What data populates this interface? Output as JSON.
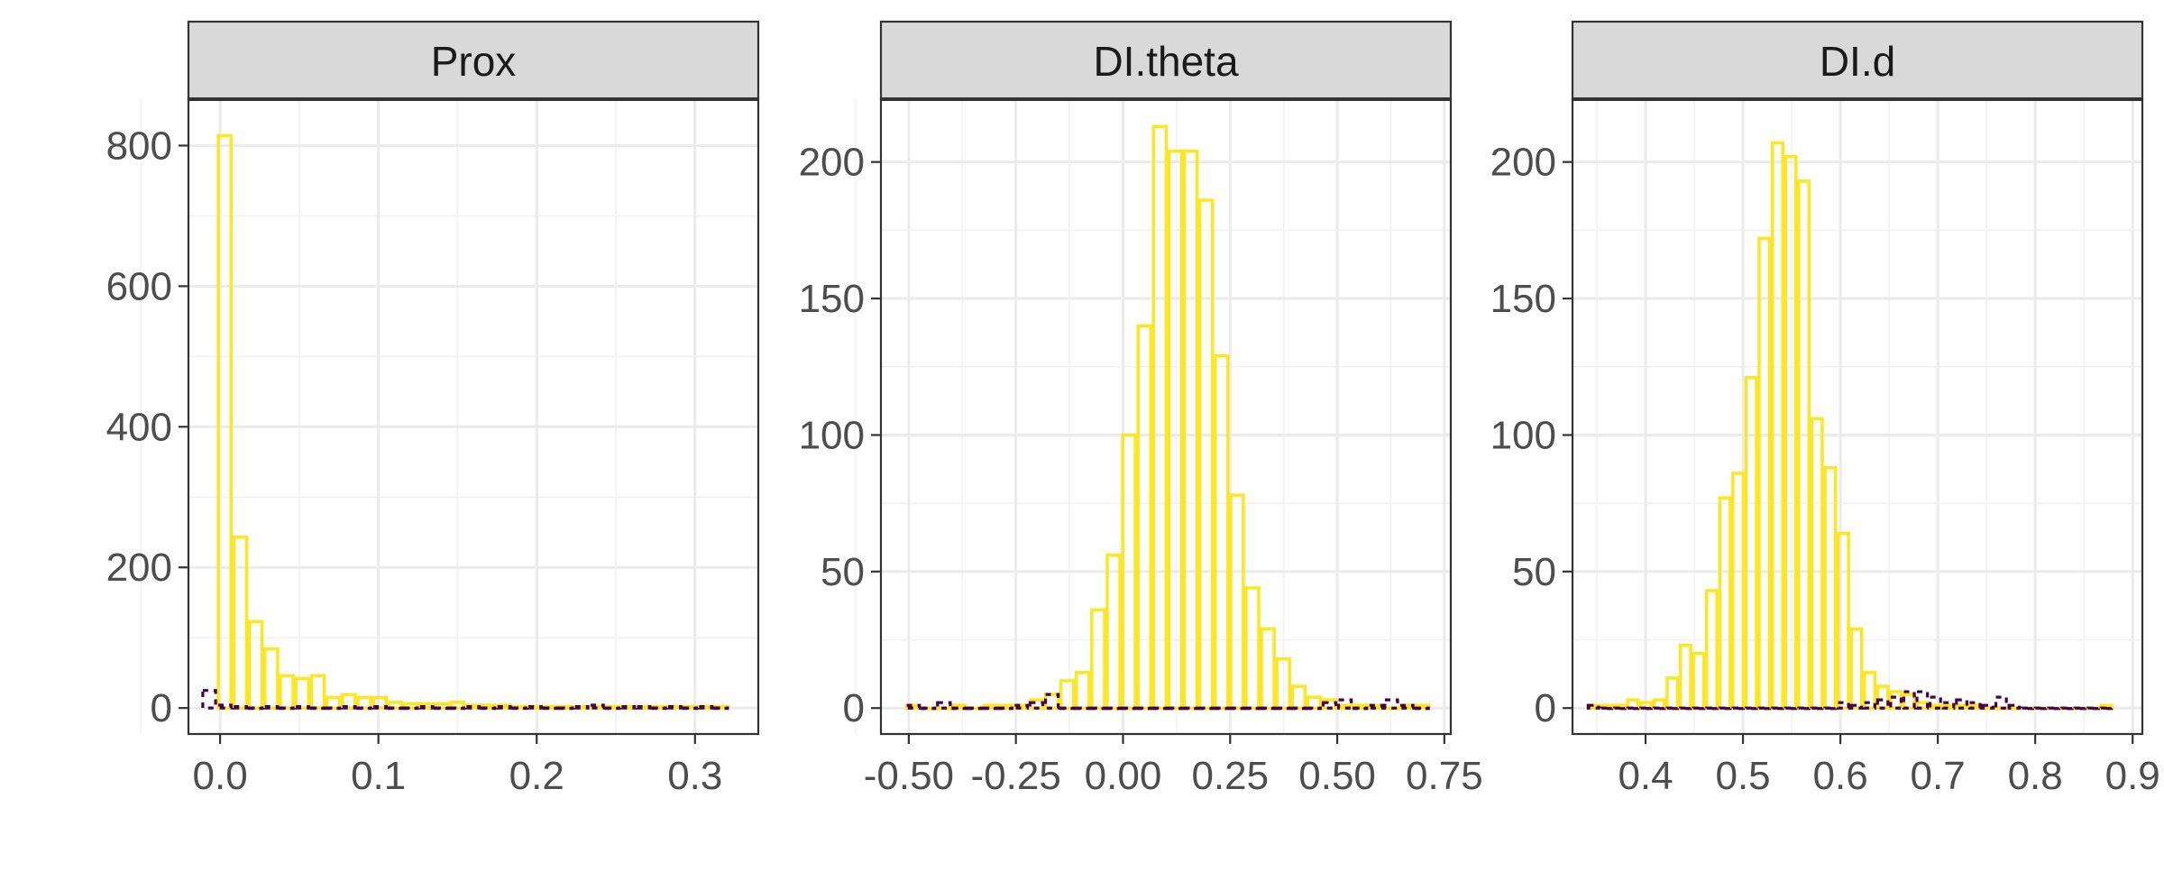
{
  "chart_data": [
    {
      "type": "bar",
      "title": "Prox",
      "xlim": [
        -0.02,
        0.34
      ],
      "ylim": [
        -37,
        866
      ],
      "x_ticks": [
        0.0,
        0.1,
        0.2,
        0.3
      ],
      "x_tick_labels": [
        "0.0",
        "0.1",
        "0.2",
        "0.3"
      ],
      "y_ticks": [
        0,
        200,
        400,
        600,
        800
      ],
      "y_tick_labels": [
        "0",
        "200",
        "400",
        "600",
        "800"
      ],
      "bin_width": 0.0098,
      "series": [
        {
          "color": "#FDE725",
          "x": [
            0.0029,
            0.0127,
            0.0225,
            0.0323,
            0.0421,
            0.0519,
            0.0617,
            0.0715,
            0.0813,
            0.0911,
            0.1009,
            0.1107,
            0.1205,
            0.1303,
            0.1401,
            0.1499,
            0.1597,
            0.1695,
            0.1793,
            0.1891,
            0.1989,
            0.2087,
            0.2185,
            0.2283,
            0.2381,
            0.2479,
            0.2577,
            0.2675,
            0.2773,
            0.2871,
            0.2969,
            0.3067,
            0.3165
          ],
          "values": [
            814,
            243,
            123,
            84,
            46,
            42,
            46,
            15,
            19,
            15,
            15,
            8,
            6,
            6,
            6,
            8,
            4,
            4,
            4,
            2,
            2,
            2,
            2,
            2,
            2,
            2,
            2,
            2,
            2,
            2,
            2,
            2,
            2
          ]
        },
        {
          "color": "#440154",
          "x": [
            -0.0069,
            0.0029,
            0.0127,
            0.0225,
            0.0323,
            0.0421,
            0.0519,
            0.0617,
            0.0715,
            0.0813,
            0.0911,
            0.1009,
            0.1107,
            0.1205,
            0.1303,
            0.1401,
            0.1499,
            0.1597,
            0.1695,
            0.1793,
            0.1891,
            0.1989,
            0.2087,
            0.2185,
            0.2283,
            0.2381,
            0.2479,
            0.2577,
            0.2675,
            0.2773,
            0.2871,
            0.2969,
            0.3067,
            0.3165
          ],
          "values": [
            25,
            4,
            2,
            0,
            2,
            0,
            2,
            0,
            0,
            2,
            0,
            2,
            0,
            0,
            2,
            0,
            0,
            2,
            0,
            2,
            0,
            2,
            0,
            0,
            2,
            4,
            0,
            2,
            2,
            0,
            2,
            0,
            2,
            0
          ]
        }
      ]
    },
    {
      "type": "bar",
      "title": "DI.theta",
      "xlim": [
        -0.565,
        0.765
      ],
      "ylim": [
        -9.5,
        223
      ],
      "x_ticks": [
        -0.5,
        -0.25,
        0.0,
        0.25,
        0.5,
        0.75
      ],
      "x_tick_labels": [
        "-0.50",
        "-0.25",
        "0.00",
        "0.25",
        "0.50",
        "0.75"
      ],
      "y_ticks": [
        0,
        50,
        100,
        150,
        200
      ],
      "y_tick_labels": [
        "0",
        "50",
        "100",
        "150",
        "200"
      ],
      "bin_width": 0.036,
      "series": [
        {
          "color": "#FDE725",
          "x": [
            -0.49,
            -0.454,
            -0.418,
            -0.382,
            -0.346,
            -0.31,
            -0.274,
            -0.238,
            -0.202,
            -0.166,
            -0.13,
            -0.094,
            -0.058,
            -0.022,
            0.014,
            0.05,
            0.086,
            0.122,
            0.158,
            0.194,
            0.23,
            0.266,
            0.302,
            0.338,
            0.374,
            0.41,
            0.446,
            0.482,
            0.518,
            0.554,
            0.59,
            0.626,
            0.662,
            0.698
          ],
          "values": [
            1,
            0,
            0,
            1,
            0,
            1,
            1,
            1,
            3,
            5,
            10,
            13,
            36,
            56,
            100,
            140,
            213,
            204,
            204,
            186,
            129,
            78,
            44,
            29,
            18,
            8,
            4,
            3,
            1,
            1,
            1,
            0,
            1,
            1
          ]
        },
        {
          "color": "#440154",
          "x": [
            -0.49,
            -0.454,
            -0.418,
            -0.382,
            -0.346,
            -0.31,
            -0.274,
            -0.238,
            -0.202,
            -0.166,
            -0.13,
            -0.094,
            -0.058,
            -0.022,
            0.014,
            0.05,
            0.086,
            0.122,
            0.158,
            0.194,
            0.23,
            0.266,
            0.302,
            0.338,
            0.374,
            0.41,
            0.446,
            0.482,
            0.518,
            0.554,
            0.59,
            0.626,
            0.662,
            0.698
          ],
          "values": [
            1,
            0,
            2,
            0,
            0,
            0,
            0,
            1,
            2,
            5,
            0,
            0,
            0,
            0,
            0,
            0,
            0,
            0,
            0,
            0,
            0,
            0,
            0,
            0,
            0,
            0,
            0,
            2,
            3,
            0,
            1,
            3,
            1,
            0
          ]
        }
      ]
    },
    {
      "type": "bar",
      "title": "DI.d",
      "xlim": [
        0.325,
        0.91
      ],
      "ylim": [
        -9.5,
        223
      ],
      "x_ticks": [
        0.4,
        0.5,
        0.6,
        0.7,
        0.8,
        0.9
      ],
      "x_tick_labels": [
        "0.4",
        "0.5",
        "0.6",
        "0.7",
        "0.8",
        "0.9"
      ],
      "y_ticks": [
        0,
        50,
        100,
        150,
        200
      ],
      "y_tick_labels": [
        "0",
        "50",
        "100",
        "150",
        "200"
      ],
      "bin_width": 0.0135,
      "series": [
        {
          "color": "#FDE725",
          "x": [
            0.3465,
            0.36,
            0.3735,
            0.387,
            0.4005,
            0.414,
            0.4275,
            0.441,
            0.4545,
            0.468,
            0.4815,
            0.495,
            0.5085,
            0.522,
            0.5355,
            0.549,
            0.5625,
            0.576,
            0.5895,
            0.603,
            0.6165,
            0.63,
            0.6435,
            0.657,
            0.6705,
            0.684,
            0.6975,
            0.711,
            0.7245,
            0.738,
            0.7515,
            0.765,
            0.7785,
            0.792,
            0.8055,
            0.819,
            0.8325,
            0.846,
            0.8595,
            0.873
          ],
          "values": [
            1,
            1,
            1,
            3,
            2,
            3,
            11,
            23,
            20,
            43,
            77,
            86,
            121,
            172,
            207,
            202,
            193,
            106,
            88,
            64,
            29,
            13,
            8,
            6,
            5,
            2,
            1,
            1,
            1,
            1,
            0,
            0,
            0,
            0,
            0,
            0,
            0,
            0,
            0,
            1
          ]
        },
        {
          "color": "#440154",
          "x": [
            0.3465,
            0.36,
            0.3735,
            0.387,
            0.4005,
            0.414,
            0.4275,
            0.441,
            0.4545,
            0.468,
            0.4815,
            0.495,
            0.5085,
            0.522,
            0.5355,
            0.549,
            0.5625,
            0.576,
            0.5895,
            0.603,
            0.6165,
            0.63,
            0.6435,
            0.657,
            0.6705,
            0.684,
            0.6975,
            0.711,
            0.7245,
            0.738,
            0.7515,
            0.765,
            0.7785,
            0.792,
            0.8055,
            0.819,
            0.8325,
            0.846,
            0.8595,
            0.873
          ],
          "values": [
            1,
            0,
            0,
            0,
            0,
            0,
            0,
            0,
            0,
            0,
            0,
            0,
            0,
            0,
            0,
            0,
            0,
            0,
            0,
            2,
            1,
            2,
            3,
            4,
            6,
            6,
            4,
            2,
            3,
            2,
            1,
            4,
            1,
            0,
            0,
            0,
            0,
            0,
            0,
            0
          ]
        }
      ]
    }
  ]
}
